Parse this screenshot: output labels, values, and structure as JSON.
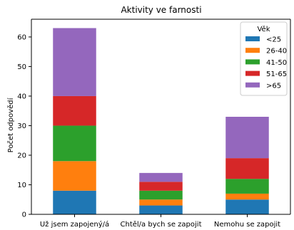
{
  "chart_data": {
    "type": "bar",
    "stacked": true,
    "title": "Aktivity ve farnosti",
    "xlabel": "",
    "ylabel": "Počet odpovědí",
    "categories": [
      "Už jsem zapojený/á",
      "Chtěl/a bych se zapojit",
      "Nemohu se zapojit"
    ],
    "ylim": [
      0,
      66
    ],
    "yticks": [
      0,
      10,
      20,
      30,
      40,
      50,
      60
    ],
    "grid": false,
    "legend_title": "Věk",
    "legend_position": "top-right",
    "series": [
      {
        "name": "<25",
        "color": "#1f77b4",
        "values": [
          8,
          3,
          5
        ]
      },
      {
        "name": "26-40",
        "color": "#ff7f0e",
        "values": [
          10,
          2,
          2
        ]
      },
      {
        "name": "41-50",
        "color": "#2ca02c",
        "values": [
          12,
          3,
          5
        ]
      },
      {
        "name": "51-65",
        "color": "#d62728",
        "values": [
          10,
          3,
          7
        ]
      },
      {
        "name": ">65",
        "color": "#9467bd",
        "values": [
          23,
          3,
          14
        ]
      }
    ]
  }
}
